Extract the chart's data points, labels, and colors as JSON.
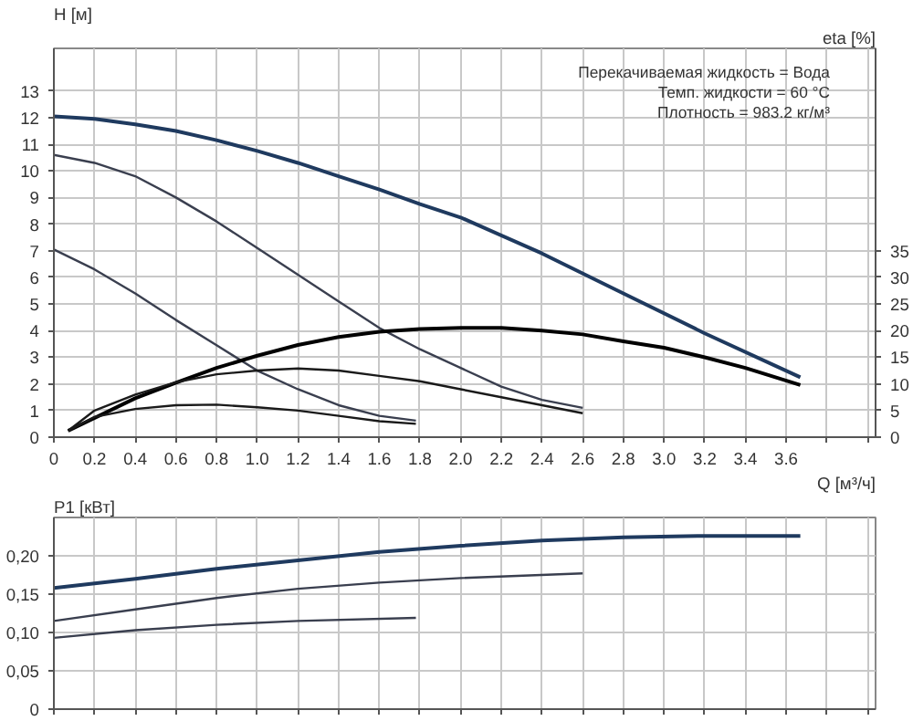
{
  "chart_data": [
    {
      "type": "line",
      "xlabel": "Q [м³/ч]",
      "ylabel": "H [м]",
      "y2label": "eta [%]",
      "annotations": [
        "Перекачиваемая жидкость = Вода",
        "Темп. жидкости = 60 °C",
        "Плотность = 983.2 кг/м³"
      ],
      "xlim": [
        0,
        4.04
      ],
      "ylim": [
        0,
        14.6
      ],
      "y2lim": [
        0,
        73
      ],
      "xticks": [
        0,
        0.2,
        0.4,
        0.6,
        0.8,
        {
          "value": 1,
          "label": "1.0"
        },
        1.2,
        1.4,
        1.6,
        1.8,
        {
          "value": 2,
          "label": "2.0"
        },
        2.2,
        2.4,
        2.6,
        2.8,
        {
          "value": 3,
          "label": "3.0"
        },
        3.2,
        3.4,
        3.6,
        {
          "value": 3.8,
          "label": null
        },
        {
          "value": 4.0,
          "label": null
        }
      ],
      "yticks": [
        0,
        1,
        2,
        3,
        4,
        5,
        6,
        7,
        8,
        9,
        10,
        11,
        12,
        13
      ],
      "y2ticks": [
        0,
        5,
        10,
        15,
        20,
        25,
        30,
        35
      ],
      "grid": true,
      "tick_labels": [
        "x",
        "y",
        "y2"
      ],
      "series": [
        {
          "color": "#1f3a5f",
          "x": [
            0,
            0.2,
            0.4,
            0.6,
            0.8,
            1.0,
            1.2,
            1.4,
            1.6,
            1.8,
            2.0,
            2.4,
            2.8,
            3.2,
            3.67
          ],
          "values": [
            12.05,
            11.95,
            11.75,
            11.5,
            11.15,
            10.75,
            10.3,
            9.8,
            9.3,
            8.75,
            8.25,
            6.9,
            5.4,
            3.9,
            2.25
          ]
        },
        {
          "color": "#3a3f4f",
          "x": [
            0,
            0.2,
            0.4,
            0.6,
            0.8,
            1.0,
            1.2,
            1.4,
            1.6,
            1.8,
            2.0,
            2.2,
            2.4,
            2.6
          ],
          "values": [
            10.6,
            10.3,
            9.8,
            9.0,
            8.1,
            7.1,
            6.1,
            5.1,
            4.1,
            3.3,
            2.6,
            1.9,
            1.4,
            1.1
          ]
        },
        {
          "color": "#3a3f4f",
          "x": [
            0,
            0.2,
            0.4,
            0.6,
            0.8,
            1.0,
            1.2,
            1.4,
            1.6,
            1.78
          ],
          "values": [
            7.05,
            6.3,
            5.4,
            4.4,
            3.45,
            2.5,
            1.8,
            1.2,
            0.8,
            0.62
          ]
        },
        {
          "color": "#000000",
          "axis": "y2",
          "x": [
            0.07,
            0.4,
            0.6,
            0.8,
            1.0,
            1.2,
            1.4,
            1.6,
            1.8,
            2.0,
            2.2,
            2.4,
            2.6,
            2.8,
            3.0,
            3.2,
            3.4,
            3.67
          ],
          "values": [
            1.2,
            7.3,
            10.2,
            13,
            15.3,
            17.3,
            18.8,
            19.8,
            20.3,
            20.5,
            20.5,
            20,
            19.3,
            18,
            16.8,
            15,
            13,
            9.8
          ]
        },
        {
          "color": "#1a1a1a",
          "axis": "y2",
          "x": [
            0.07,
            0.2,
            0.4,
            0.6,
            0.8,
            1.0,
            1.2,
            1.4,
            1.6,
            1.8,
            2.0,
            2.2,
            2.4,
            2.6
          ],
          "values": [
            1.2,
            5,
            8,
            10.3,
            11.8,
            12.5,
            12.9,
            12.5,
            11.5,
            10.5,
            9,
            7.5,
            6,
            4.5
          ]
        },
        {
          "color": "#1a1a1a",
          "axis": "y2",
          "x": [
            0.07,
            0.2,
            0.4,
            0.6,
            0.8,
            1.0,
            1.2,
            1.4,
            1.6,
            1.78
          ],
          "values": [
            1.2,
            3.8,
            5.3,
            6,
            6.1,
            5.6,
            5,
            4,
            3,
            2.5
          ]
        }
      ]
    },
    {
      "type": "line",
      "ylabel": "P1 [кВт]",
      "xlim": [
        0,
        4.04
      ],
      "ylim": [
        0,
        0.25
      ],
      "xticks": [
        0,
        0.2,
        0.4,
        0.6,
        0.8,
        1.0,
        1.2,
        1.4,
        1.6,
        1.8,
        2.0,
        2.2,
        2.4,
        2.6,
        2.8,
        3.0,
        3.2,
        3.4,
        3.6,
        3.8,
        4.0
      ],
      "yticks": [
        0,
        {
          "value": 0.05,
          "label": "0,05"
        },
        {
          "value": 0.1,
          "label": "0,10"
        },
        {
          "value": 0.15,
          "label": "0,15"
        },
        {
          "value": 0.2,
          "label": "0,20"
        }
      ],
      "grid": true,
      "tick_labels": "y",
      "series": [
        {
          "color": "#1f3a5f",
          "x": [
            0,
            0.4,
            0.8,
            1.2,
            1.6,
            2.0,
            2.4,
            2.8,
            3.2,
            3.67
          ],
          "values": [
            0.158,
            0.17,
            0.183,
            0.194,
            0.205,
            0.213,
            0.22,
            0.224,
            0.226,
            0.226
          ]
        },
        {
          "color": "#3a3f4f",
          "x": [
            0,
            0.4,
            0.8,
            1.2,
            1.6,
            2.0,
            2.6
          ],
          "values": [
            0.115,
            0.13,
            0.145,
            0.157,
            0.165,
            0.171,
            0.177
          ]
        },
        {
          "color": "#3a3f4f",
          "x": [
            0,
            0.4,
            0.8,
            1.2,
            1.78
          ],
          "values": [
            0.093,
            0.103,
            0.11,
            0.115,
            0.119
          ]
        }
      ]
    }
  ]
}
